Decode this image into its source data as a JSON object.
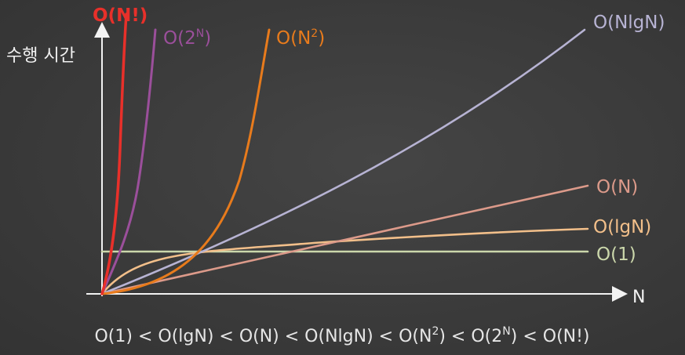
{
  "chart_data": {
    "type": "line",
    "ylabel": "수행 시간",
    "xlabel": "N",
    "series": [
      {
        "key": "nfact",
        "name": "O(N!)",
        "label_parts": [
          "O(N!)"
        ],
        "color": "#e8302a"
      },
      {
        "key": "exp",
        "name": "O(2ᴺ)",
        "label_parts": [
          "O(2",
          "N",
          ")"
        ],
        "color": "#9b4f9b"
      },
      {
        "key": "sq",
        "name": "O(N²)",
        "label_parts": [
          "O(N",
          "2",
          ")"
        ],
        "color": "#e87b1c"
      },
      {
        "key": "nlogn",
        "name": "O(NlgN)",
        "label_parts": [
          "O(NlgN)"
        ],
        "color": "#b7b3d3"
      },
      {
        "key": "lin",
        "name": "O(N)",
        "label_parts": [
          "O(N)"
        ],
        "color": "#dc9a8a"
      },
      {
        "key": "log",
        "name": "O(lgN)",
        "label_parts": [
          "O(lgN)"
        ],
        "color": "#f2bf8a"
      },
      {
        "key": "const",
        "name": "O(1)",
        "label_parts": [
          "O(1)"
        ],
        "color": "#cbd7ab"
      }
    ],
    "order_line": [
      {
        "t": "O(1) < O(lgN) < O(N) < O(NlgN) < O(N"
      },
      {
        "t": "2",
        "sup": true
      },
      {
        "t": ") < O(2"
      },
      {
        "t": "N",
        "sup": true
      },
      {
        "t": ") < O(N!)"
      }
    ]
  }
}
